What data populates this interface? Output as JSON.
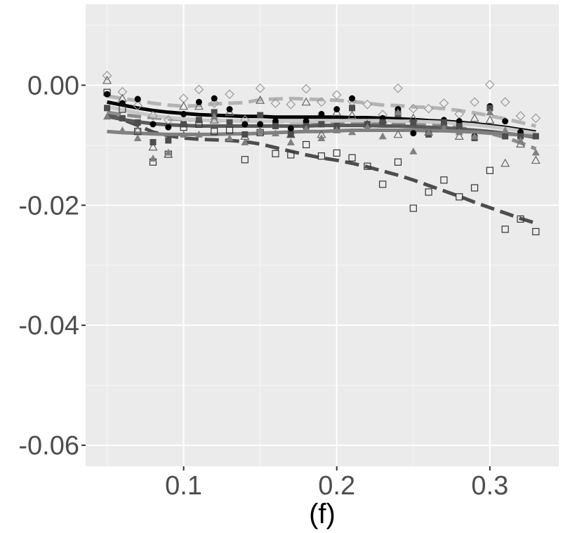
{
  "chart_data": {
    "type": "scatter",
    "title": "",
    "xlabel": "(f)",
    "ylabel": "",
    "xlim": [
      0.036,
      0.345
    ],
    "ylim": [
      -0.0635,
      0.0135
    ],
    "grid": true,
    "x_ticks": [
      {
        "value": 0.1,
        "label": "0.1"
      },
      {
        "value": 0.2,
        "label": "0.2"
      },
      {
        "value": 0.3,
        "label": "0.3"
      }
    ],
    "y_ticks": [
      {
        "value": 0.0,
        "label": "0.00"
      },
      {
        "value": -0.02,
        "label": "-0.02"
      },
      {
        "value": -0.04,
        "label": "-0.04"
      },
      {
        "value": -0.06,
        "label": "-0.06"
      }
    ],
    "x": [
      0.05,
      0.06,
      0.07,
      0.08,
      0.09,
      0.1,
      0.11,
      0.12,
      0.13,
      0.14,
      0.15,
      0.16,
      0.17,
      0.18,
      0.19,
      0.2,
      0.21,
      0.22,
      0.23,
      0.24,
      0.25,
      0.26,
      0.27,
      0.28,
      0.29,
      0.3,
      0.31,
      0.32,
      0.33
    ],
    "series": [
      {
        "name": "open-square",
        "marker": "square-open",
        "color": "#333333",
        "points": [
          -0.0012,
          -0.004,
          -0.0077,
          -0.0128,
          -0.0115,
          -0.007,
          -0.0065,
          -0.0077,
          -0.0075,
          -0.0124,
          -0.0079,
          -0.0114,
          -0.0116,
          -0.0099,
          -0.0118,
          -0.0113,
          -0.0121,
          -0.0135,
          -0.0165,
          -0.0128,
          -0.0205,
          -0.0178,
          -0.0158,
          -0.0186,
          -0.0171,
          -0.0142,
          -0.024,
          -0.0223,
          -0.0244
        ],
        "fit": [
          -0.0048,
          -0.0057,
          -0.0067,
          -0.0078,
          -0.0084,
          -0.0088,
          -0.009,
          -0.0091,
          -0.0092,
          -0.0094,
          -0.0098,
          -0.0104,
          -0.011,
          -0.0116,
          -0.0121,
          -0.0125,
          -0.013,
          -0.0136,
          -0.0143,
          -0.015,
          -0.0158,
          -0.0167,
          -0.0176,
          -0.0185,
          -0.0195,
          -0.0204,
          -0.0213,
          -0.0222,
          -0.023
        ],
        "fit_color": "#4d4d4d",
        "fit_style": "dashed"
      },
      {
        "name": "open-diamond",
        "marker": "diamond-open",
        "color": "#999999",
        "points": [
          0.0016,
          -0.0011,
          -0.0034,
          -0.0051,
          -0.0058,
          -0.0022,
          -0.0007,
          -0.003,
          -0.0015,
          -0.0058,
          -0.0005,
          -0.003,
          -0.0032,
          -0.0006,
          -0.0028,
          -0.0016,
          -0.0027,
          -0.0032,
          -0.0049,
          -0.0005,
          -0.0039,
          -0.0039,
          -0.003,
          -0.0048,
          -0.0028,
          0.0001,
          -0.0028,
          -0.0051,
          -0.0055
        ],
        "fit": [
          -0.0018,
          -0.0022,
          -0.0026,
          -0.003,
          -0.0033,
          -0.0035,
          -0.0034,
          -0.0031,
          -0.003,
          -0.0029,
          -0.0024,
          -0.0023,
          -0.0022,
          -0.0023,
          -0.0024,
          -0.0025,
          -0.0027,
          -0.003,
          -0.0033,
          -0.0034,
          -0.0036,
          -0.0037,
          -0.0039,
          -0.0042,
          -0.0046,
          -0.0051,
          -0.0056,
          -0.0062,
          -0.0068
        ],
        "fit_color": "#b3b3b3",
        "fit_style": "dashed"
      },
      {
        "name": "open-triangle",
        "marker": "triangle-open",
        "color": "#666666",
        "points": [
          0.0008,
          -0.0022,
          -0.0075,
          -0.0103,
          -0.0115,
          -0.0035,
          -0.0035,
          -0.0058,
          -0.0045,
          -0.0085,
          -0.0025,
          -0.0065,
          -0.0082,
          -0.0028,
          -0.0082,
          -0.0045,
          -0.005,
          -0.0065,
          -0.0058,
          -0.0082,
          -0.0055,
          -0.0078,
          -0.0065,
          -0.0085,
          -0.0055,
          -0.0058,
          -0.013,
          -0.0098,
          -0.0125
        ],
        "fit": [
          -0.0045,
          -0.0049,
          -0.0052,
          -0.0054,
          -0.0056,
          -0.0057,
          -0.0058,
          -0.0059,
          -0.0059,
          -0.006,
          -0.006,
          -0.006,
          -0.0061,
          -0.0061,
          -0.0062,
          -0.0062,
          -0.0062,
          -0.0063,
          -0.0063,
          -0.0064,
          -0.0065,
          -0.0066,
          -0.0068,
          -0.0071,
          -0.0075,
          -0.008,
          -0.0087,
          -0.0096,
          -0.0106
        ],
        "fit_color": "#8c8c8c",
        "fit_style": "dashed"
      },
      {
        "name": "filled-circle",
        "marker": "circle",
        "color": "#000000",
        "points": [
          -0.0015,
          -0.003,
          -0.0023,
          -0.0065,
          -0.007,
          -0.0048,
          -0.0028,
          -0.0022,
          -0.004,
          -0.0065,
          -0.0065,
          -0.006,
          -0.0072,
          -0.006,
          -0.0048,
          -0.004,
          -0.0022,
          -0.0065,
          -0.0055,
          -0.004,
          -0.008,
          -0.008,
          -0.0058,
          -0.006,
          -0.0085,
          -0.0035,
          -0.006,
          -0.0078,
          -0.0085
        ],
        "fit": [
          -0.0028,
          -0.0033,
          -0.0038,
          -0.0042,
          -0.0045,
          -0.0047,
          -0.0049,
          -0.005,
          -0.0051,
          -0.0052,
          -0.0052,
          -0.0053,
          -0.0053,
          -0.0053,
          -0.0053,
          -0.0053,
          -0.0054,
          -0.0054,
          -0.0055,
          -0.0056,
          -0.0057,
          -0.0059,
          -0.006,
          -0.0062,
          -0.0064,
          -0.0067,
          -0.007,
          -0.0074,
          -0.0078
        ],
        "fit_color": "#000000",
        "fit_style": "solid"
      },
      {
        "name": "filled-square",
        "marker": "square",
        "color": "#4d4d4d",
        "points": [
          -0.0038,
          -0.0055,
          -0.0062,
          -0.0095,
          -0.0092,
          -0.0065,
          -0.0058,
          -0.0045,
          -0.0062,
          -0.0082,
          -0.005,
          -0.0068,
          -0.0082,
          -0.0068,
          -0.0065,
          -0.0068,
          -0.0038,
          -0.0065,
          -0.0062,
          -0.0048,
          -0.0062,
          -0.0082,
          -0.0062,
          -0.0068,
          -0.0088,
          -0.0038,
          -0.0085,
          -0.0085,
          -0.0085
        ],
        "fit": [
          -0.0052,
          -0.0057,
          -0.0061,
          -0.0064,
          -0.0066,
          -0.0067,
          -0.0068,
          -0.0068,
          -0.0068,
          -0.0068,
          -0.0068,
          -0.0068,
          -0.0068,
          -0.0068,
          -0.0067,
          -0.0067,
          -0.0067,
          -0.0067,
          -0.0068,
          -0.0068,
          -0.0069,
          -0.007,
          -0.0071,
          -0.0073,
          -0.0075,
          -0.0077,
          -0.008,
          -0.0083,
          -0.0087
        ],
        "fit_color": "#5a5a5a",
        "fit_style": "solid"
      },
      {
        "name": "filled-triangle",
        "marker": "triangle",
        "color": "#808080",
        "points": [
          -0.0052,
          -0.0075,
          -0.0088,
          -0.0122,
          -0.0112,
          -0.0082,
          -0.0082,
          -0.0052,
          -0.0088,
          -0.0095,
          -0.0075,
          -0.008,
          -0.0095,
          -0.0072,
          -0.0088,
          -0.0075,
          -0.0078,
          -0.007,
          -0.0085,
          -0.0045,
          -0.011,
          -0.0078,
          -0.0072,
          -0.0078,
          -0.0085,
          -0.0045,
          -0.0075,
          -0.0092,
          -0.0112
        ],
        "fit": [
          -0.0077,
          -0.0079,
          -0.008,
          -0.0081,
          -0.0082,
          -0.0082,
          -0.0082,
          -0.0082,
          -0.0081,
          -0.0081,
          -0.008,
          -0.0079,
          -0.0078,
          -0.0077,
          -0.0077,
          -0.0076,
          -0.0075,
          -0.0075,
          -0.0075,
          -0.0075,
          -0.0075,
          -0.0076,
          -0.0076,
          -0.0077,
          -0.0078,
          -0.008,
          -0.0081,
          -0.0083,
          -0.0085
        ],
        "fit_color": "#808080",
        "fit_style": "solid"
      },
      {
        "name": "light-solid-fit",
        "marker": "none",
        "color": "#c8c8c8",
        "points": [],
        "fit": [
          -0.0036,
          -0.0041,
          -0.0046,
          -0.0051,
          -0.0054,
          -0.0056,
          -0.0058,
          -0.0059,
          -0.0059,
          -0.006,
          -0.006,
          -0.006,
          -0.006,
          -0.006,
          -0.006,
          -0.0059,
          -0.0059,
          -0.0059,
          -0.0059,
          -0.006,
          -0.006,
          -0.0061,
          -0.0062,
          -0.0064,
          -0.0066,
          -0.0069,
          -0.0072,
          -0.0076,
          -0.008
        ],
        "fit_color": "#c8c8c8",
        "fit_style": "solid"
      }
    ]
  }
}
